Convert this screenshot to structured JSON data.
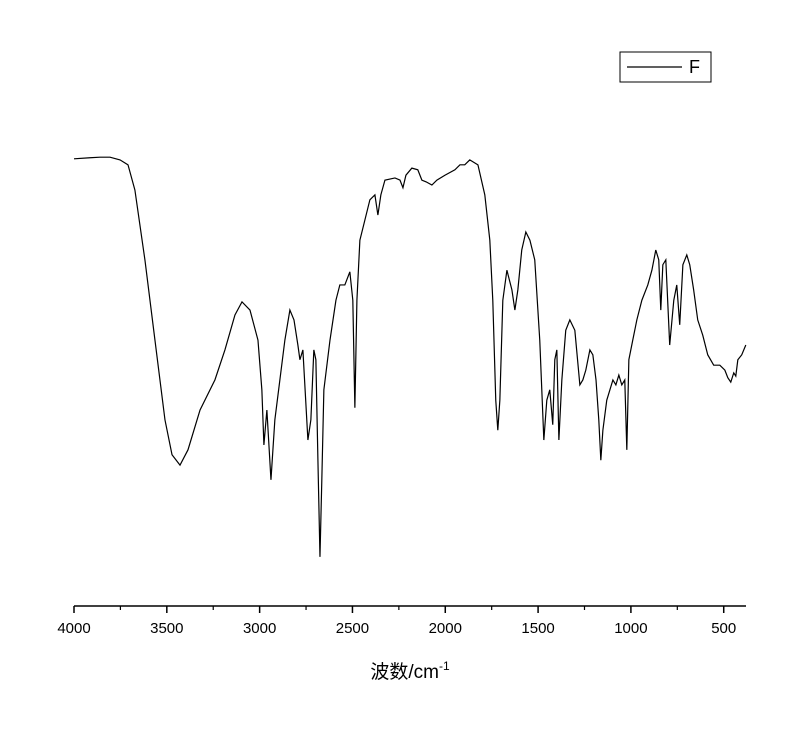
{
  "chart_data": {
    "type": "line",
    "xlabel": "波数/cm",
    "xlabel_superscript": "-1",
    "xlim": [
      4000,
      380
    ],
    "ylim": [
      0,
      100
    ],
    "xticks": [
      4000,
      3500,
      3000,
      2500,
      2000,
      1500,
      1000,
      500
    ],
    "xminorticks": [
      3750,
      3250,
      2750,
      2250,
      1750,
      1250,
      750
    ],
    "grid": false,
    "legend": "top-right",
    "series": [
      {
        "name": "F",
        "color": "#000000",
        "x": [
          4000,
          3914,
          3860,
          3806,
          3752,
          3709,
          3672,
          3618,
          3564,
          3510,
          3472,
          3429,
          3386,
          3321,
          3241,
          3187,
          3133,
          3095,
          3052,
          3009,
          2988,
          2977,
          2961,
          2939,
          2918,
          2891,
          2864,
          2837,
          2815,
          2794,
          2783,
          2767,
          2740,
          2724,
          2708,
          2697,
          2686,
          2675,
          2665,
          2654,
          2621,
          2589,
          2568,
          2541,
          2514,
          2498,
          2487,
          2476,
          2460,
          2433,
          2406,
          2379,
          2363,
          2347,
          2325,
          2271,
          2244,
          2228,
          2212,
          2180,
          2148,
          2126,
          2104,
          2072,
          2045,
          2002,
          1948,
          1921,
          1895,
          1868,
          1824,
          1787,
          1760,
          1744,
          1728,
          1717,
          1706,
          1690,
          1668,
          1641,
          1625,
          1609,
          1588,
          1566,
          1544,
          1518,
          1491,
          1469,
          1453,
          1437,
          1421,
          1410,
          1399,
          1388,
          1372,
          1351,
          1329,
          1302,
          1275,
          1259,
          1243,
          1221,
          1205,
          1188,
          1173,
          1162,
          1151,
          1130,
          1097,
          1081,
          1065,
          1049,
          1033,
          1022,
          1011,
          990,
          968,
          941,
          909,
          887,
          866,
          850,
          839,
          828,
          812,
          791,
          769,
          753,
          737,
          720,
          699,
          683,
          662,
          640,
          613,
          586,
          554,
          521,
          494,
          478,
          462,
          446,
          435,
          424,
          403,
          381
        ],
        "values": [
          81.9,
          82.1,
          82.2,
          82.2,
          81.7,
          80.8,
          76.2,
          63.4,
          48.7,
          34.1,
          27.7,
          25.8,
          28.6,
          35.9,
          41.4,
          46.9,
          53.3,
          55.7,
          54.2,
          48.7,
          39.6,
          29.5,
          35.9,
          23.1,
          34.1,
          41.4,
          48.7,
          54.2,
          52.4,
          47.8,
          45.1,
          46.9,
          30.4,
          34.1,
          46.9,
          45.1,
          26.7,
          9.0,
          23.1,
          39.6,
          48.7,
          56.0,
          58.8,
          58.8,
          61.2,
          56.0,
          36.3,
          56.0,
          67.0,
          70.7,
          74.4,
          75.3,
          71.6,
          75.3,
          78.0,
          78.4,
          78.0,
          76.6,
          78.9,
          80.2,
          79.9,
          78.0,
          77.7,
          77.1,
          78.0,
          78.9,
          79.9,
          80.8,
          80.8,
          81.7,
          80.8,
          75.3,
          67.0,
          56.0,
          37.7,
          32.2,
          37.7,
          56.0,
          61.5,
          57.9,
          54.2,
          57.9,
          65.2,
          68.5,
          67.0,
          63.4,
          48.7,
          30.4,
          37.7,
          39.6,
          33.2,
          45.1,
          46.9,
          30.4,
          41.4,
          50.5,
          52.4,
          50.5,
          40.5,
          41.4,
          43.2,
          46.9,
          46.0,
          41.4,
          34.1,
          26.7,
          32.2,
          37.7,
          41.4,
          40.5,
          42.3,
          40.5,
          41.4,
          28.6,
          45.1,
          48.7,
          52.4,
          56.0,
          58.8,
          61.5,
          65.2,
          63.4,
          54.2,
          62.5,
          63.4,
          47.8,
          56.0,
          58.8,
          51.5,
          62.5,
          64.3,
          62.5,
          57.9,
          52.4,
          49.6,
          46.0,
          44.1,
          44.1,
          43.2,
          41.8,
          41.0,
          42.7,
          42.1,
          45.1,
          46.0,
          47.8
        ]
      }
    ]
  }
}
